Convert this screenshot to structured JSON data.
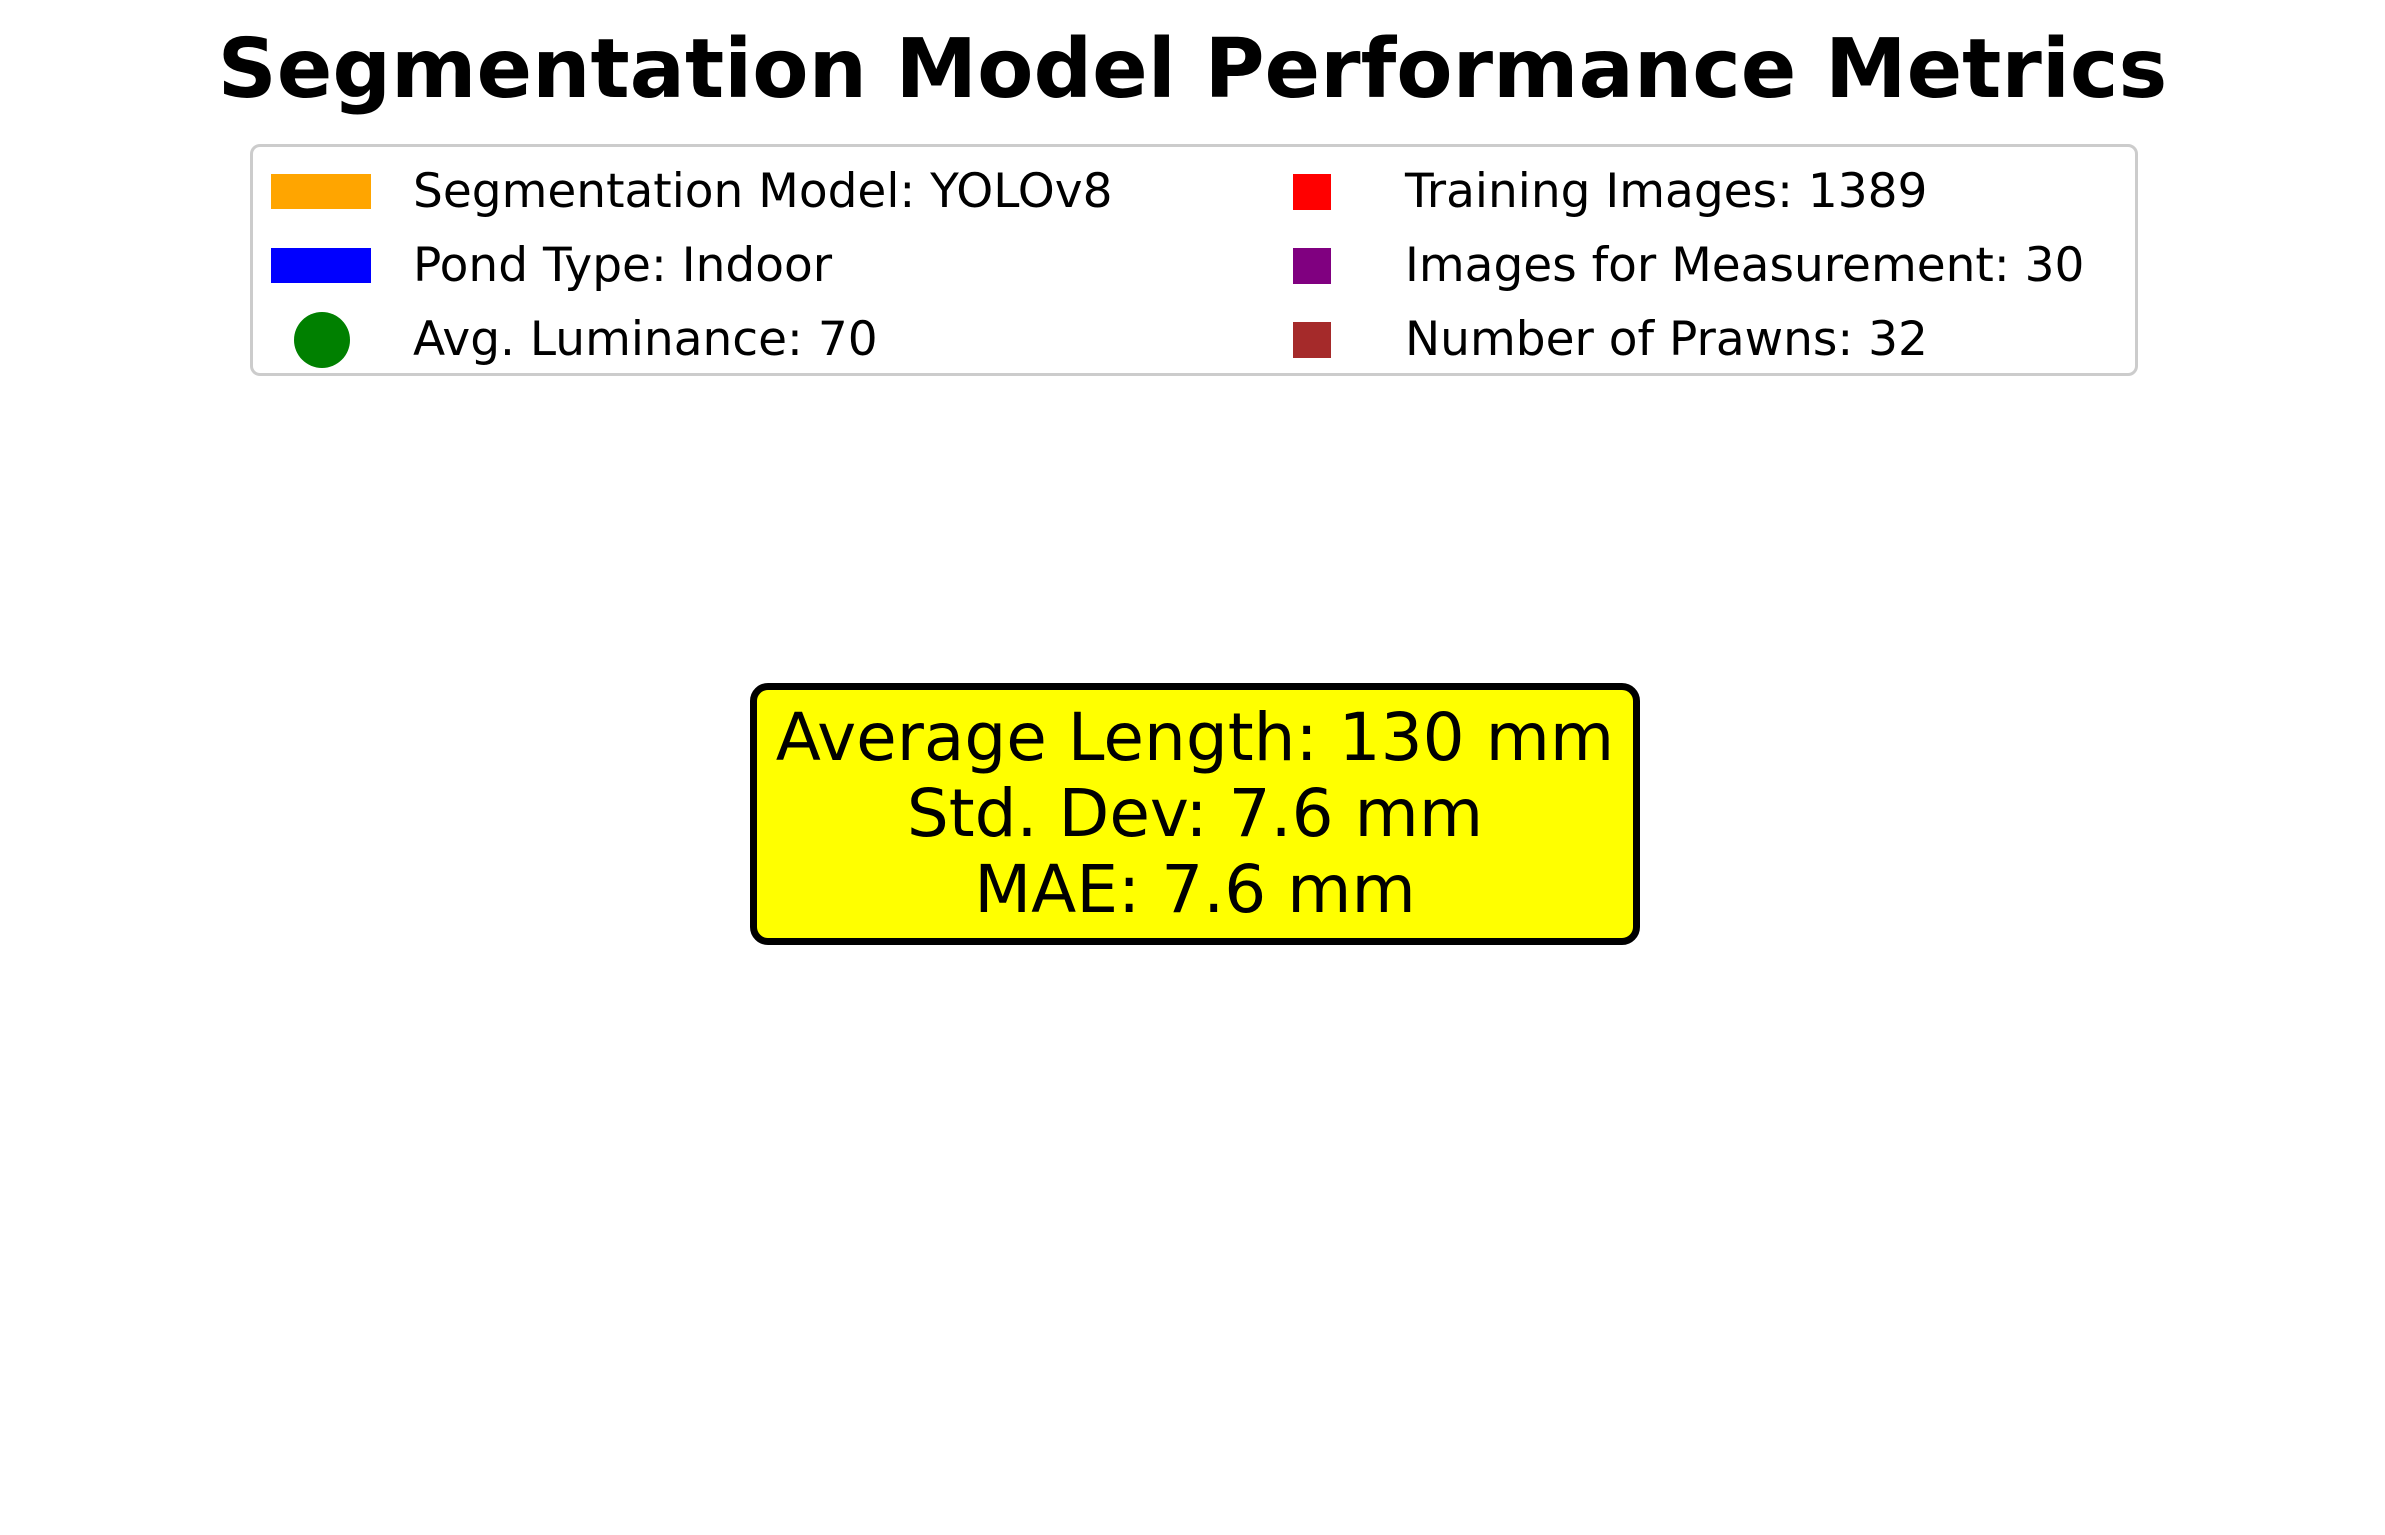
{
  "title": "Segmentation Model Performance Metrics",
  "legend": {
    "items": [
      {
        "marker": "bar",
        "color": "#ffa500",
        "label": "Segmentation Model: YOLOv8"
      },
      {
        "marker": "bar",
        "color": "#0000ff",
        "label": "Pond Type: Indoor"
      },
      {
        "marker": "circle",
        "color": "#008000",
        "label": "Avg. Luminance: 70"
      },
      {
        "marker": "square",
        "color": "#ff0000",
        "label": "Training Images: 1389"
      },
      {
        "marker": "square",
        "color": "#800080",
        "label": "Images for Measurement: 30"
      },
      {
        "marker": "square",
        "color": "#a52a2a",
        "label": "Number of Prawns: 32"
      }
    ]
  },
  "info_box": {
    "background": "#ffff00",
    "lines": [
      "Average Length: 130 mm",
      "Std. Dev: 7.6 mm",
      "MAE: 7.6 mm"
    ]
  }
}
